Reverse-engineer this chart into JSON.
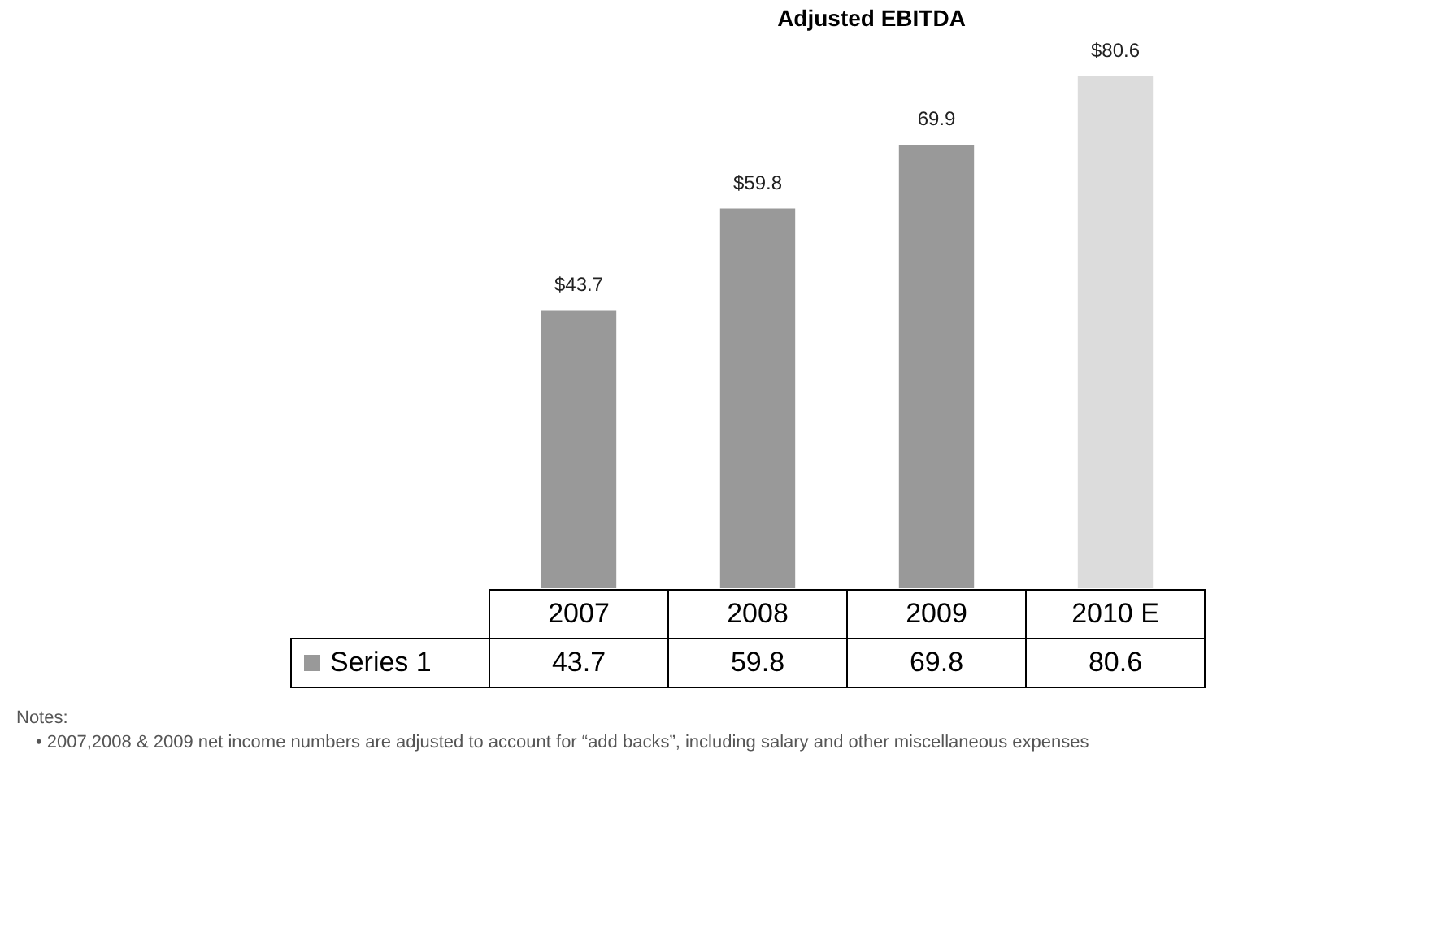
{
  "chart_data": {
    "type": "bar",
    "title": "Adjusted EBITDA",
    "categories": [
      "2007",
      "2008",
      "2009",
      "2010 E"
    ],
    "series": [
      {
        "name": "Series 1",
        "color": "#999999",
        "colors": [
          "#999999",
          "#999999",
          "#999999",
          "#dcdcdc"
        ],
        "values": [
          43.7,
          59.8,
          69.8,
          80.6
        ]
      }
    ],
    "value_labels": [
      "$43.7",
      "$59.8",
      "69.9",
      "$80.6"
    ],
    "data_labels": true,
    "grid": false,
    "legend": "bottom",
    "annotations": [
      "Notes:",
      "• 2007,2008 & 2009 net income numbers are adjusted to account for “add backs”, including salary and other miscellaneous expenses"
    ]
  }
}
